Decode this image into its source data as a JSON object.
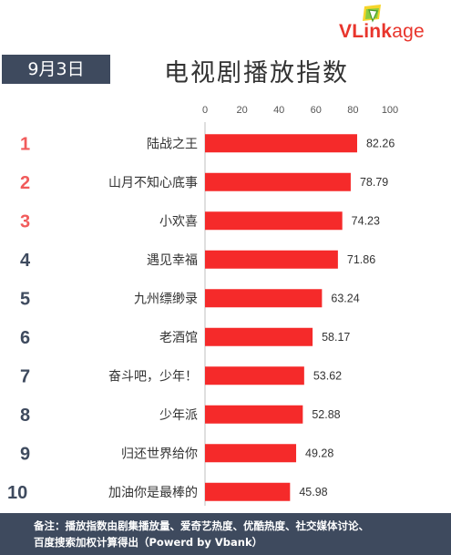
{
  "brand": {
    "logo_text_v": "V",
    "logo_text_rest": "Link",
    "logo_text_age": "age"
  },
  "date_badge": "9月3日",
  "title": "电视剧播放指数",
  "colors": {
    "bar": "#f52a2a",
    "rank_top": "#f15b5b",
    "rank_other": "#3e4a5e",
    "header_bg": "#3e4a5e"
  },
  "chart_data": {
    "type": "bar",
    "orientation": "horizontal",
    "title": "电视剧播放指数",
    "xlim": [
      0,
      100
    ],
    "x_ticks": [
      "0",
      "20",
      "40",
      "60",
      "80",
      "100"
    ],
    "categories": [
      "陆战之王",
      "山月不知心底事",
      "小欢喜",
      "遇见幸福",
      "九州缥缈录",
      "老酒馆",
      "奋斗吧，少年！",
      "少年派",
      "归还世界给你",
      "加油你是最棒的"
    ],
    "ranks": [
      "1",
      "2",
      "3",
      "4",
      "5",
      "6",
      "7",
      "8",
      "9",
      "10"
    ],
    "values": [
      82.26,
      78.79,
      74.23,
      71.86,
      63.24,
      58.17,
      53.62,
      52.88,
      49.28,
      45.98
    ],
    "value_labels": [
      "82.26",
      "78.79",
      "74.23",
      "71.86",
      "63.24",
      "58.17",
      "53.62",
      "52.88",
      "49.28",
      "45.98"
    ],
    "grid": false,
    "legend": "none"
  },
  "footer": {
    "line1": "备注：播放指数由剧集播放量、爱奇艺热度、优酷热度、社交媒体讨论、",
    "line2": "百度搜索加权计算得出（Powerd by Vbank）"
  }
}
